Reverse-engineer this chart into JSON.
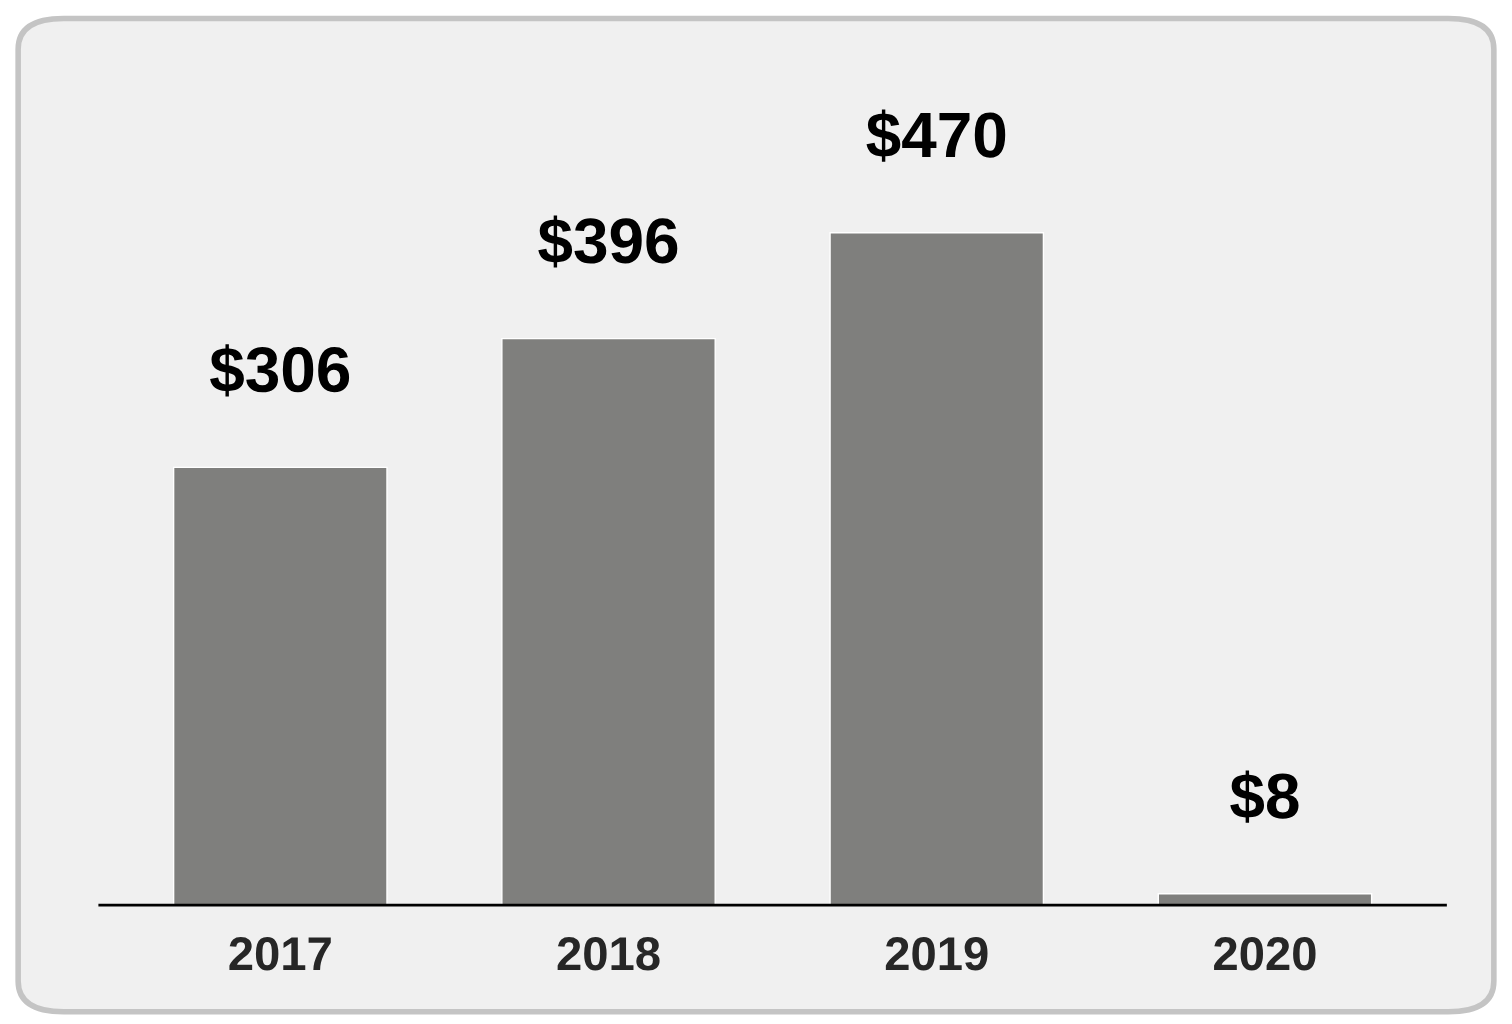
{
  "chart_data": {
    "type": "bar",
    "categories": [
      "2017",
      "2018",
      "2019",
      "2020"
    ],
    "series": [
      {
        "color": "#7f7f7d",
        "values": [
          306,
          396,
          470,
          8
        ],
        "value_labels": [
          "$306",
          "$396",
          "$470",
          "$8"
        ]
      }
    ],
    "grid": false,
    "legend": false,
    "tick_labels": "x"
  }
}
